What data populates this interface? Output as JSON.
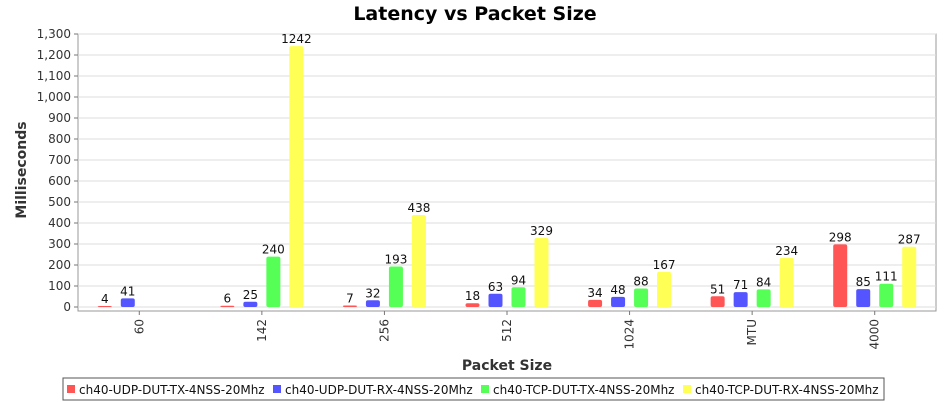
{
  "chart_data": {
    "type": "bar",
    "title": "Latency vs Packet Size",
    "xlabel": "Packet Size",
    "ylabel": "Milliseconds",
    "categories": [
      "60",
      "142",
      "256",
      "512",
      "1024",
      "MTU",
      "4000"
    ],
    "ylim": [
      0,
      1300
    ],
    "yticks": [
      0,
      100,
      200,
      300,
      400,
      500,
      600,
      700,
      800,
      900,
      1000,
      1100,
      1200,
      1300
    ],
    "ytick_labels": [
      "0",
      "100",
      "200",
      "300",
      "400",
      "500",
      "600",
      "700",
      "800",
      "900",
      "1,000",
      "1,100",
      "1,200",
      "1,300"
    ],
    "grid": true,
    "legend_position": "bottom",
    "series": [
      {
        "name": "ch40-UDP-DUT-TX-4NSS-20Mhz",
        "color": "#ff5555",
        "values": [
          4,
          6,
          7,
          18,
          34,
          51,
          298
        ]
      },
      {
        "name": "ch40-UDP-DUT-RX-4NSS-20Mhz",
        "color": "#5555ff",
        "values": [
          41,
          25,
          32,
          63,
          48,
          71,
          85
        ]
      },
      {
        "name": "ch40-TCP-DUT-TX-4NSS-20Mhz",
        "color": "#55ff55",
        "values": [
          null,
          240,
          193,
          94,
          88,
          84,
          111
        ]
      },
      {
        "name": "ch40-TCP-DUT-RX-4NSS-20Mhz",
        "color": "#ffff55",
        "values": [
          null,
          1242,
          438,
          329,
          167,
          234,
          287
        ]
      }
    ]
  }
}
